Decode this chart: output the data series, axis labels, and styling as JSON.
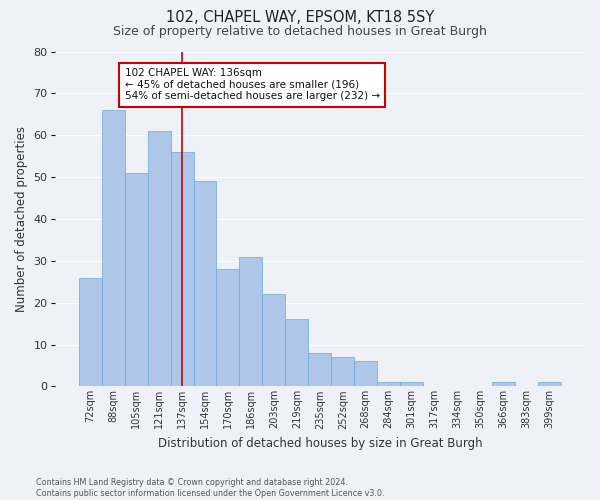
{
  "title1": "102, CHAPEL WAY, EPSOM, KT18 5SY",
  "title2": "Size of property relative to detached houses in Great Burgh",
  "xlabel": "Distribution of detached houses by size in Great Burgh",
  "ylabel": "Number of detached properties",
  "categories": [
    "72sqm",
    "88sqm",
    "105sqm",
    "121sqm",
    "137sqm",
    "154sqm",
    "170sqm",
    "186sqm",
    "203sqm",
    "219sqm",
    "235sqm",
    "252sqm",
    "268sqm",
    "284sqm",
    "301sqm",
    "317sqm",
    "334sqm",
    "350sqm",
    "366sqm",
    "383sqm",
    "399sqm"
  ],
  "values": [
    26,
    66,
    51,
    61,
    56,
    49,
    28,
    31,
    22,
    16,
    8,
    7,
    6,
    1,
    1,
    0,
    0,
    0,
    1,
    0,
    1
  ],
  "bar_color": "#aec6e8",
  "bar_edge_color": "#6aaad4",
  "vline_x": 4,
  "vline_color": "#cc0000",
  "annotation_text": "102 CHAPEL WAY: 136sqm\n← 45% of detached houses are smaller (196)\n54% of semi-detached houses are larger (232) →",
  "annotation_box_color": "#ffffff",
  "annotation_box_edge": "#cc0000",
  "ylim": [
    0,
    80
  ],
  "yticks": [
    0,
    10,
    20,
    30,
    40,
    50,
    60,
    70,
    80
  ],
  "background_color": "#eef2f8",
  "grid_color": "#ffffff",
  "footer_line1": "Contains HM Land Registry data © Crown copyright and database right 2024.",
  "footer_line2": "Contains public sector information licensed under the Open Government Licence v3.0."
}
